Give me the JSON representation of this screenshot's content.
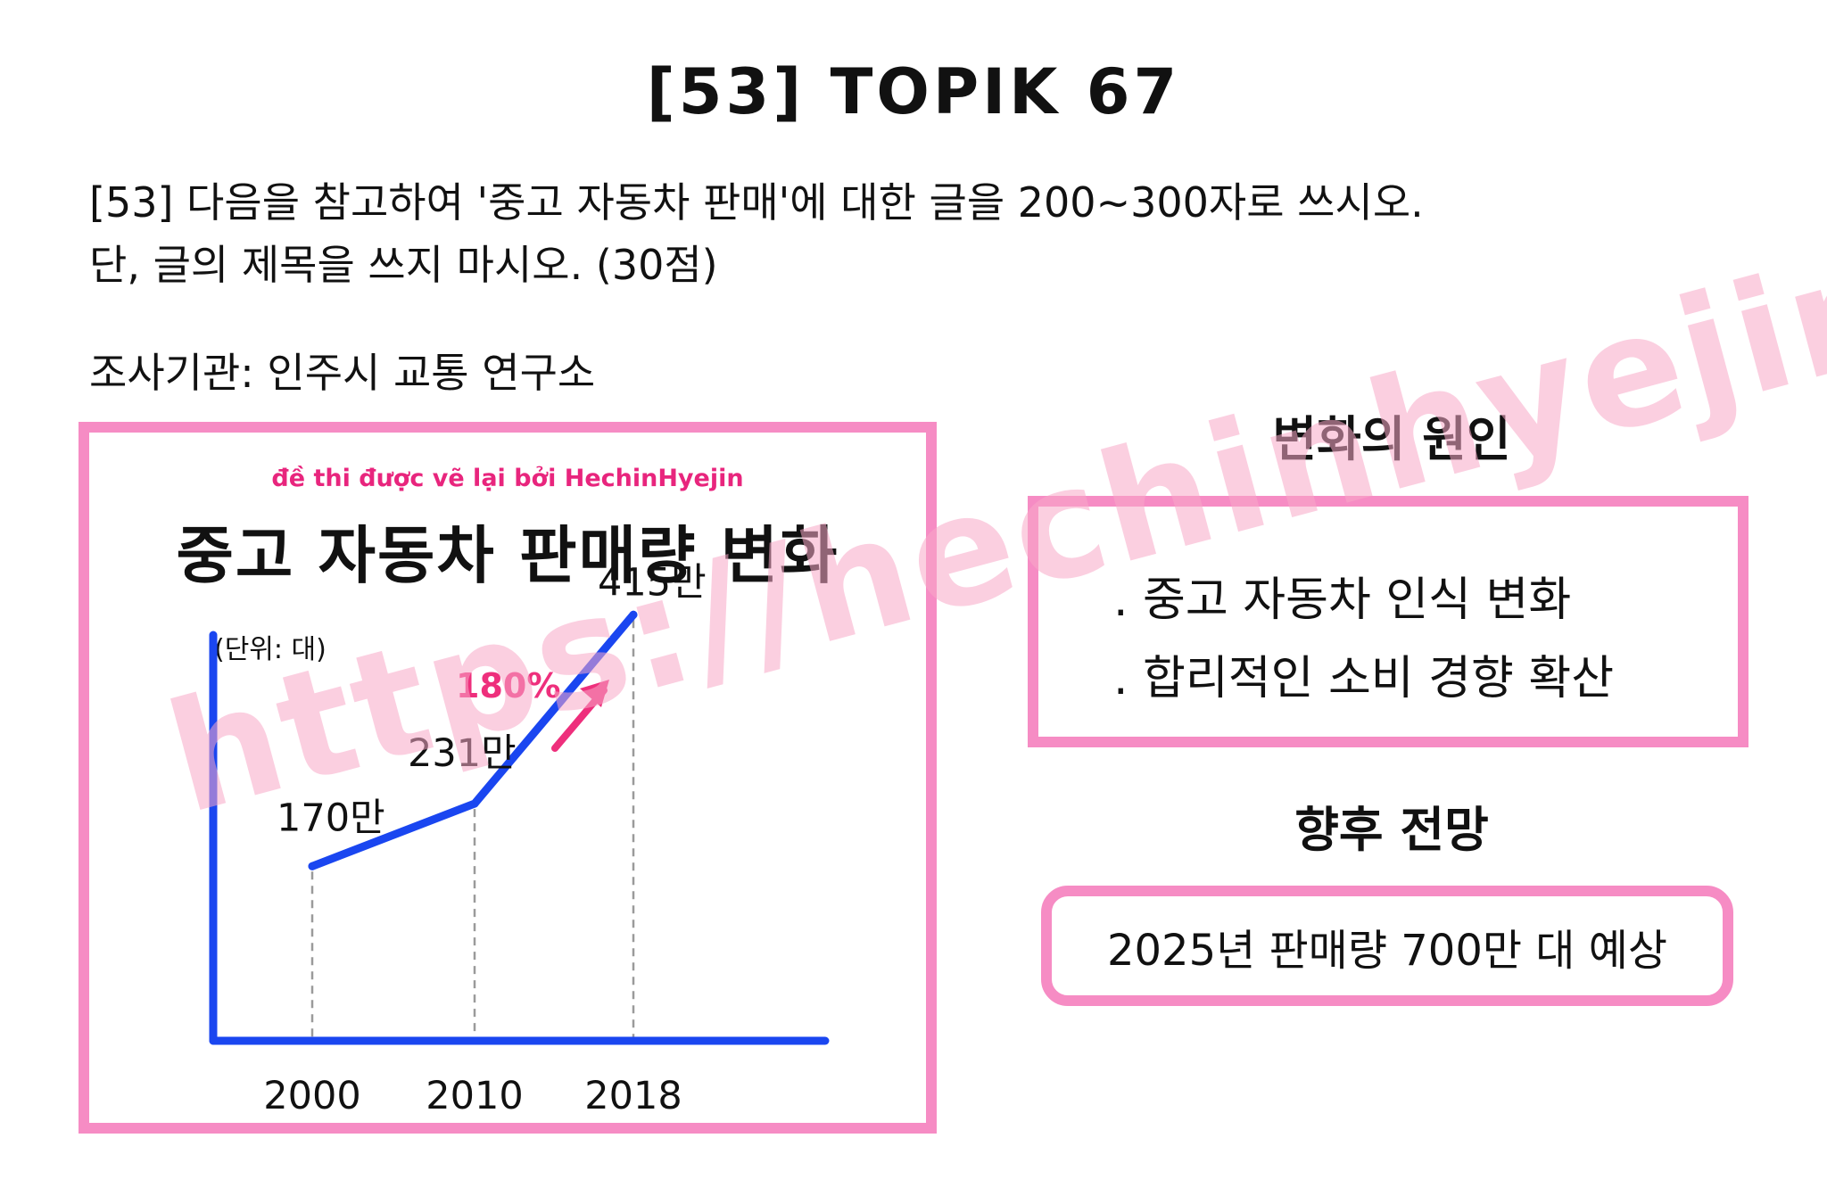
{
  "page_title": "[53] TOPIK 67",
  "instruction": {
    "line1": "[53] 다음을 참고하여 '중고 자동차 판매'에 대한 글을 200~300자로 쓰시오.",
    "line2": "단, 글의 제목을 쓰지 마시오. (30점)"
  },
  "source_line": "조사기관: 인주시 교통 연구소",
  "chart_credit": "đề thi được vẽ lại bởi HechinHyejin",
  "chart_data": {
    "type": "line",
    "title": "중고 자동차 판매량 변화",
    "unit_label": "(단위: 대)",
    "x": [
      "2000",
      "2010",
      "2018"
    ],
    "series": [
      {
        "values": [
          1700000,
          2310000,
          4150000
        ],
        "color": "#1a46f0"
      }
    ],
    "point_labels": [
      "170만",
      "231만",
      "415만"
    ],
    "annotations": [
      {
        "text": "180%",
        "color": "#ee2f7c",
        "arrow": "up-right"
      }
    ],
    "xlabel": "",
    "ylabel": "",
    "ylim": [
      0,
      4500000
    ],
    "grid": false,
    "guide_lines": "dashed vertical from each point to x-axis"
  },
  "causes": {
    "heading": "변화의 원인",
    "items": [
      ". 중고 자동차 인식 변화",
      ". 합리적인 소비 경향 확산"
    ]
  },
  "outlook": {
    "heading": "향후 전망",
    "text": "2025년 판매량 700만 대 예상"
  },
  "watermark": "https://hechinhyejin.com/",
  "colors": {
    "frame_pink": "#f68cc4",
    "series_blue": "#1a46f0",
    "accent_pink": "#ee2f7c",
    "watermark_pink": "#f8a8c8"
  }
}
